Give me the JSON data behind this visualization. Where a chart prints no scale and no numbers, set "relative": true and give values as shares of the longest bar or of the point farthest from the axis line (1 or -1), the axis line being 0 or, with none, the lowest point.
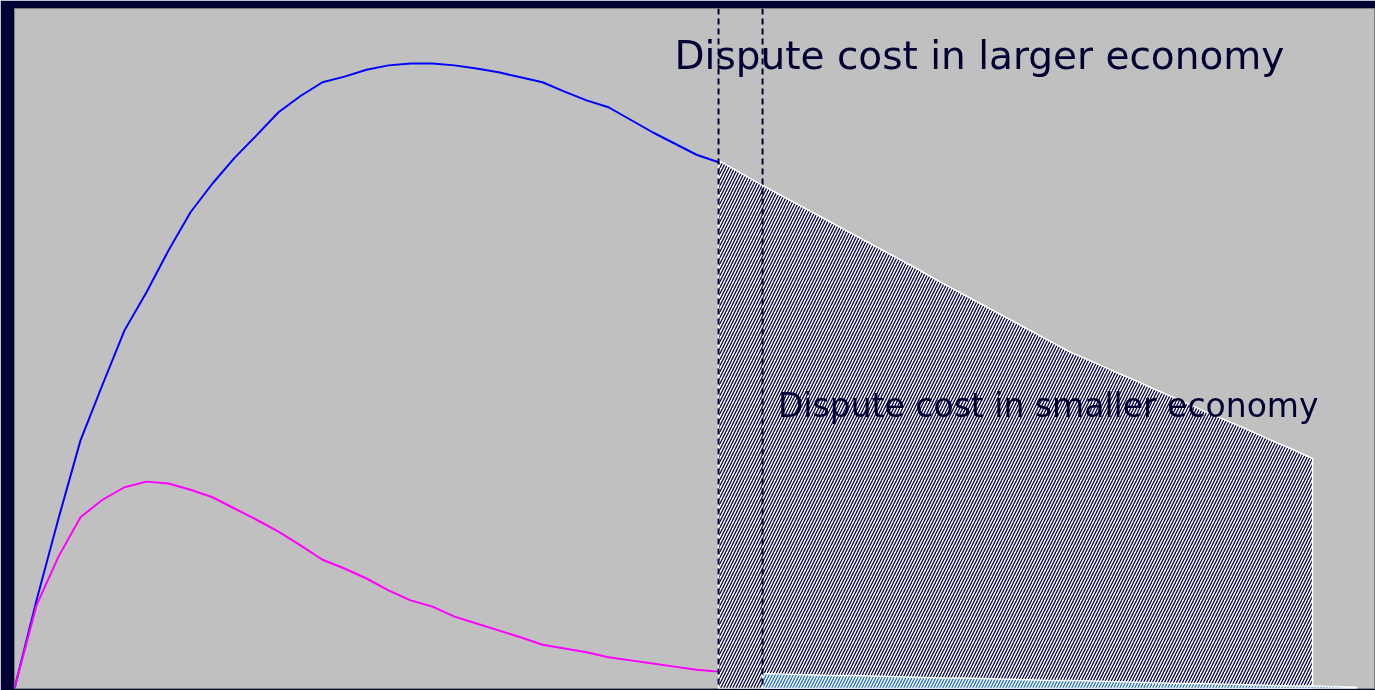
{
  "chart_data": {
    "type": "line",
    "relative": true,
    "categories": [
      null,
      null,
      null,
      null,
      null,
      null,
      null,
      null,
      null,
      null,
      null,
      null,
      null,
      null,
      null,
      null,
      null,
      null,
      null,
      null,
      null,
      null,
      null,
      null,
      null,
      null,
      null,
      null,
      null,
      null,
      null,
      null,
      null,
      null,
      null,
      null,
      null,
      null,
      null,
      null,
      null,
      null,
      null,
      null,
      null,
      null,
      null,
      null,
      null,
      null,
      null,
      null,
      null,
      null,
      null,
      null,
      null,
      null,
      null,
      null,
      null,
      null
    ],
    "series": [
      {
        "type": "area",
        "color": "#000040",
        "values": [
          null,
          null,
          null,
          null,
          null,
          null,
          null,
          null,
          null,
          null,
          null,
          null,
          null,
          null,
          null,
          null,
          null,
          null,
          null,
          null,
          null,
          null,
          null,
          null,
          null,
          null,
          null,
          null,
          null,
          null,
          null,
          null,
          0.845,
          0.825,
          0.805,
          0.786,
          0.767,
          0.748,
          0.729,
          0.71,
          0.691,
          0.672,
          0.652,
          0.633,
          0.614,
          0.595,
          0.576,
          0.557,
          0.538,
          0.523,
          0.507,
          0.492,
          0.476,
          0.461,
          0.445,
          0.43,
          0.415,
          0.399,
          0.384,
          0.368,
          null,
          null
        ]
      },
      {
        "type": "area",
        "color": "#1f6fc0",
        "values": [
          null,
          null,
          null,
          null,
          null,
          null,
          null,
          null,
          null,
          null,
          null,
          null,
          null,
          null,
          null,
          null,
          null,
          null,
          null,
          null,
          null,
          null,
          null,
          null,
          null,
          null,
          null,
          null,
          null,
          null,
          null,
          null,
          null,
          null,
          0.024,
          0.023,
          0.022,
          0.021,
          0.021,
          0.02,
          0.019,
          0.018,
          0.017,
          0.017,
          0.016,
          0.015,
          0.014,
          0.013,
          0.013,
          0.012,
          0.011,
          0.01,
          0.009,
          0.008,
          0.008,
          0.007,
          0.006,
          0.005,
          0.004,
          0.004,
          0.003,
          0.002
        ]
      },
      {
        "color": "#0000ff",
        "values": [
          0,
          0.141,
          0.272,
          0.397,
          0.486,
          0.573,
          0.634,
          0.701,
          0.762,
          0.808,
          0.849,
          0.885,
          0.922,
          0.948,
          0.97,
          0.979,
          0.99,
          0.997,
          1,
          1,
          0.997,
          0.992,
          0.986,
          0.978,
          0.97,
          0.955,
          0.941,
          0.93,
          0.91,
          0.89,
          0.872,
          0.854,
          0.842,
          null,
          null,
          null,
          null,
          null,
          null,
          null,
          null,
          null,
          null,
          null,
          null,
          null,
          null,
          null,
          null,
          null,
          null,
          null,
          null,
          null,
          null,
          null,
          null,
          null,
          null,
          null,
          null,
          null
        ]
      },
      {
        "color": "#ff00ff",
        "values": [
          0,
          0.133,
          0.211,
          0.274,
          0.302,
          0.322,
          0.331,
          0.328,
          0.318,
          0.306,
          0.288,
          0.27,
          0.251,
          0.229,
          0.206,
          0.192,
          0.176,
          0.157,
          0.141,
          0.131,
          0.115,
          0.104,
          0.093,
          0.082,
          0.07,
          0.064,
          0.058,
          0.05,
          0.045,
          0.04,
          0.035,
          0.03,
          0.027,
          null,
          null,
          null,
          null,
          null,
          null,
          null,
          null,
          null,
          null,
          null,
          null,
          null,
          null,
          null,
          null,
          null,
          null,
          null,
          null,
          null,
          null,
          null,
          null,
          null,
          null,
          null,
          null,
          null
        ]
      }
    ],
    "annotations": [
      "Dispute cost in larger economy",
      "Dispute cost in smaller economy"
    ]
  }
}
